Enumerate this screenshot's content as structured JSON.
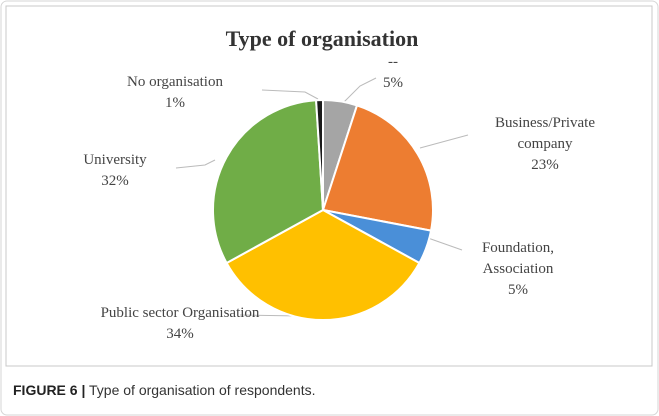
{
  "chart_data": {
    "type": "pie",
    "title": "Type of organisation",
    "categories": [
      "--",
      "Business/Private company",
      "Foundation, Association",
      "Public sector Organisation",
      "University",
      "No organisation"
    ],
    "values": [
      5,
      23,
      5,
      34,
      32,
      1
    ],
    "value_labels": [
      "5%",
      "23%",
      "5%",
      "34%",
      "32%",
      "1%"
    ],
    "colors": [
      "#a5a5a5",
      "#ed7d31",
      "#4a8fd8",
      "#ffc000",
      "#70ad47",
      "#1a1a1a"
    ]
  },
  "caption": {
    "label": "FIGURE 6 |",
    "text": "Type of organisation of respondents."
  }
}
